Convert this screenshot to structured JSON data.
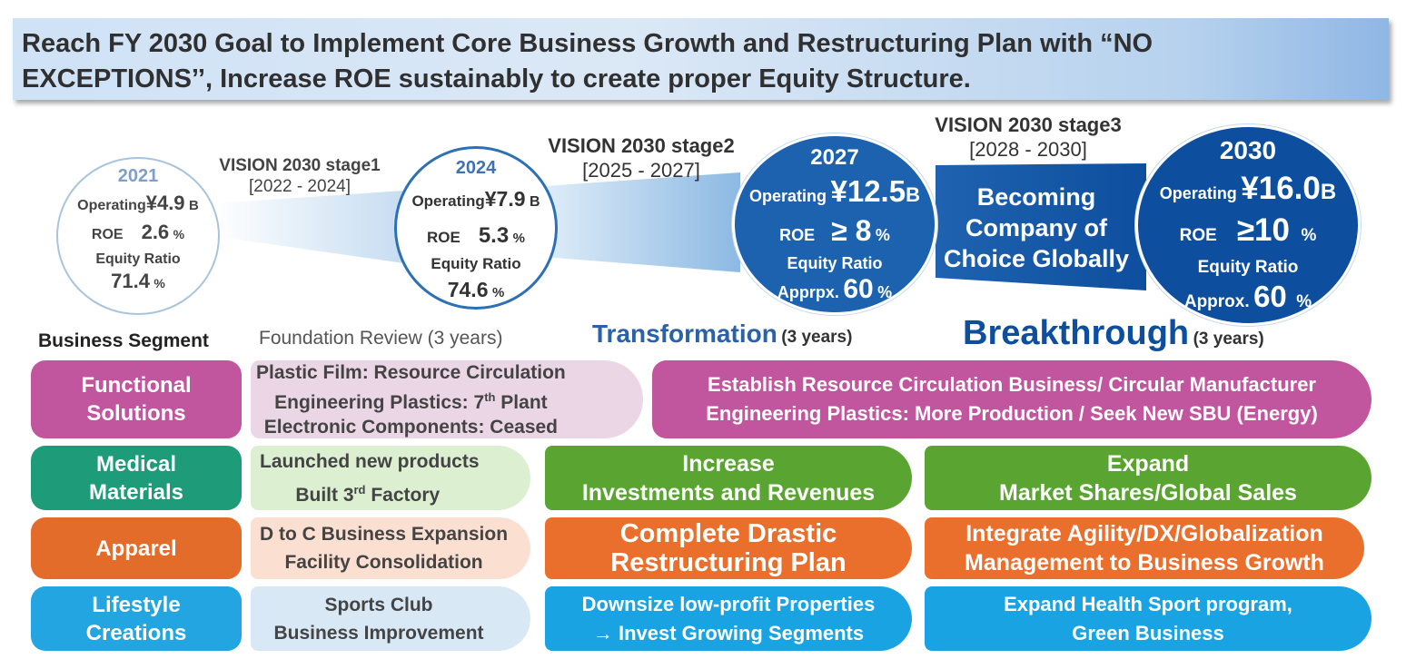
{
  "banner": {
    "line1": "Reach FY 2030 Goal to Implement Core Business Growth and Restructuring Plan with “NO",
    "line2": "EXCEPTIONS’’, Increase ROE sustainably to create proper Equity Structure."
  },
  "stages": {
    "stage1": {
      "title": "VISION 2030 stage1",
      "period": "[2022 - 2024]"
    },
    "stage2": {
      "title": "VISION 2030 stage2",
      "period": "[2025 - 2027]"
    },
    "stage3": {
      "title": "VISION 2030 stage3",
      "period": "[2028 - 2030]"
    }
  },
  "circles": {
    "c2021": {
      "year": "2021",
      "op_label": "Operating",
      "op_value": "¥4.9",
      "op_unit": "B",
      "roe_label": "ROE",
      "roe_value": "2.6",
      "roe_unit": "%",
      "eq_label": "Equity Ratio",
      "eq_value": "71.4",
      "eq_unit": "%"
    },
    "c2024": {
      "year": "2024",
      "op_label": "Operating",
      "op_value": "¥7.9",
      "op_unit": "B",
      "roe_label": "ROE",
      "roe_value": "5.3",
      "roe_unit": "%",
      "eq_label": "Equity Ratio",
      "eq_value": "74.6",
      "eq_unit": "%"
    },
    "c2027": {
      "year": "2027",
      "op_label": "Operating",
      "op_value": "¥12.5",
      "op_unit": "B",
      "roe_label": "ROE",
      "roe_value": "≥ 8",
      "roe_unit": "%",
      "eq_label": "Equity Ratio",
      "eq_prefix": "Apprpx.",
      "eq_value": "60",
      "eq_unit": "%"
    },
    "c2030": {
      "year": "2030",
      "op_label": "Operating",
      "op_value": "¥16.0",
      "op_unit": "B",
      "roe_label": "ROE",
      "roe_value": "≥10",
      "roe_unit": "%",
      "eq_label": "Equity Ratio",
      "eq_prefix": "Approx.",
      "eq_value": "60",
      "eq_unit": "%"
    }
  },
  "becoming": [
    "Becoming",
    "Company of",
    "Choice Globally"
  ],
  "phases": {
    "segment_header": "Business Segment",
    "foundation": "Foundation Review (3 years)",
    "transformation": "Transformation",
    "transformation_years": "(3 years)",
    "breakthrough": "Breakthrough",
    "breakthrough_years": "(3 years)"
  },
  "segments": {
    "functional": {
      "name": [
        "Functional",
        "Solutions"
      ],
      "foundation": [
        "Plastic Film: Resource Circulation",
        "Engineering Plastics: 7",
        "th",
        " Plant",
        "Electronic Components: Ceased"
      ],
      "future": [
        "Establish Resource Circulation Business/ Circular Manufacturer",
        "Engineering Plastics: More Production / Seek New SBU (Energy)"
      ]
    },
    "medical": {
      "name": [
        "Medical",
        "Materials"
      ],
      "foundation": [
        "Launched new products",
        "Built 3",
        "rd",
        " Factory"
      ],
      "transformation": [
        "Increase",
        "Investments and Revenues"
      ],
      "breakthrough": [
        "Expand",
        "Market Shares/Global Sales"
      ]
    },
    "apparel": {
      "name": [
        "Apparel"
      ],
      "foundation": [
        "D to C Business Expansion",
        "Facility Consolidation"
      ],
      "transformation": [
        "Complete Drastic",
        "Restructuring Plan"
      ],
      "breakthrough": [
        "Integrate Agility/DX/Globalization",
        "Management to Business Growth"
      ]
    },
    "lifestyle": {
      "name": [
        "Lifestyle",
        "Creations"
      ],
      "foundation": [
        "Sports Club",
        "Business Improvement"
      ],
      "transformation": [
        "Downsize low-profit Properties",
        "→ Invest Growing Segments"
      ],
      "breakthrough": [
        "Expand Health Sport program,",
        "Green Business"
      ]
    }
  },
  "colors": {
    "functional": "#c2569e",
    "medical": "#1e9b78",
    "apparel": "#e46c2b",
    "lifestyle": "#22a5e0",
    "green_pill": "#5aa531",
    "orange_pill": "#ea6f2d",
    "blue_pill": "#1aa3e3",
    "dark_blue": "#0d4f9e",
    "title_blue": "#2a61a8"
  }
}
